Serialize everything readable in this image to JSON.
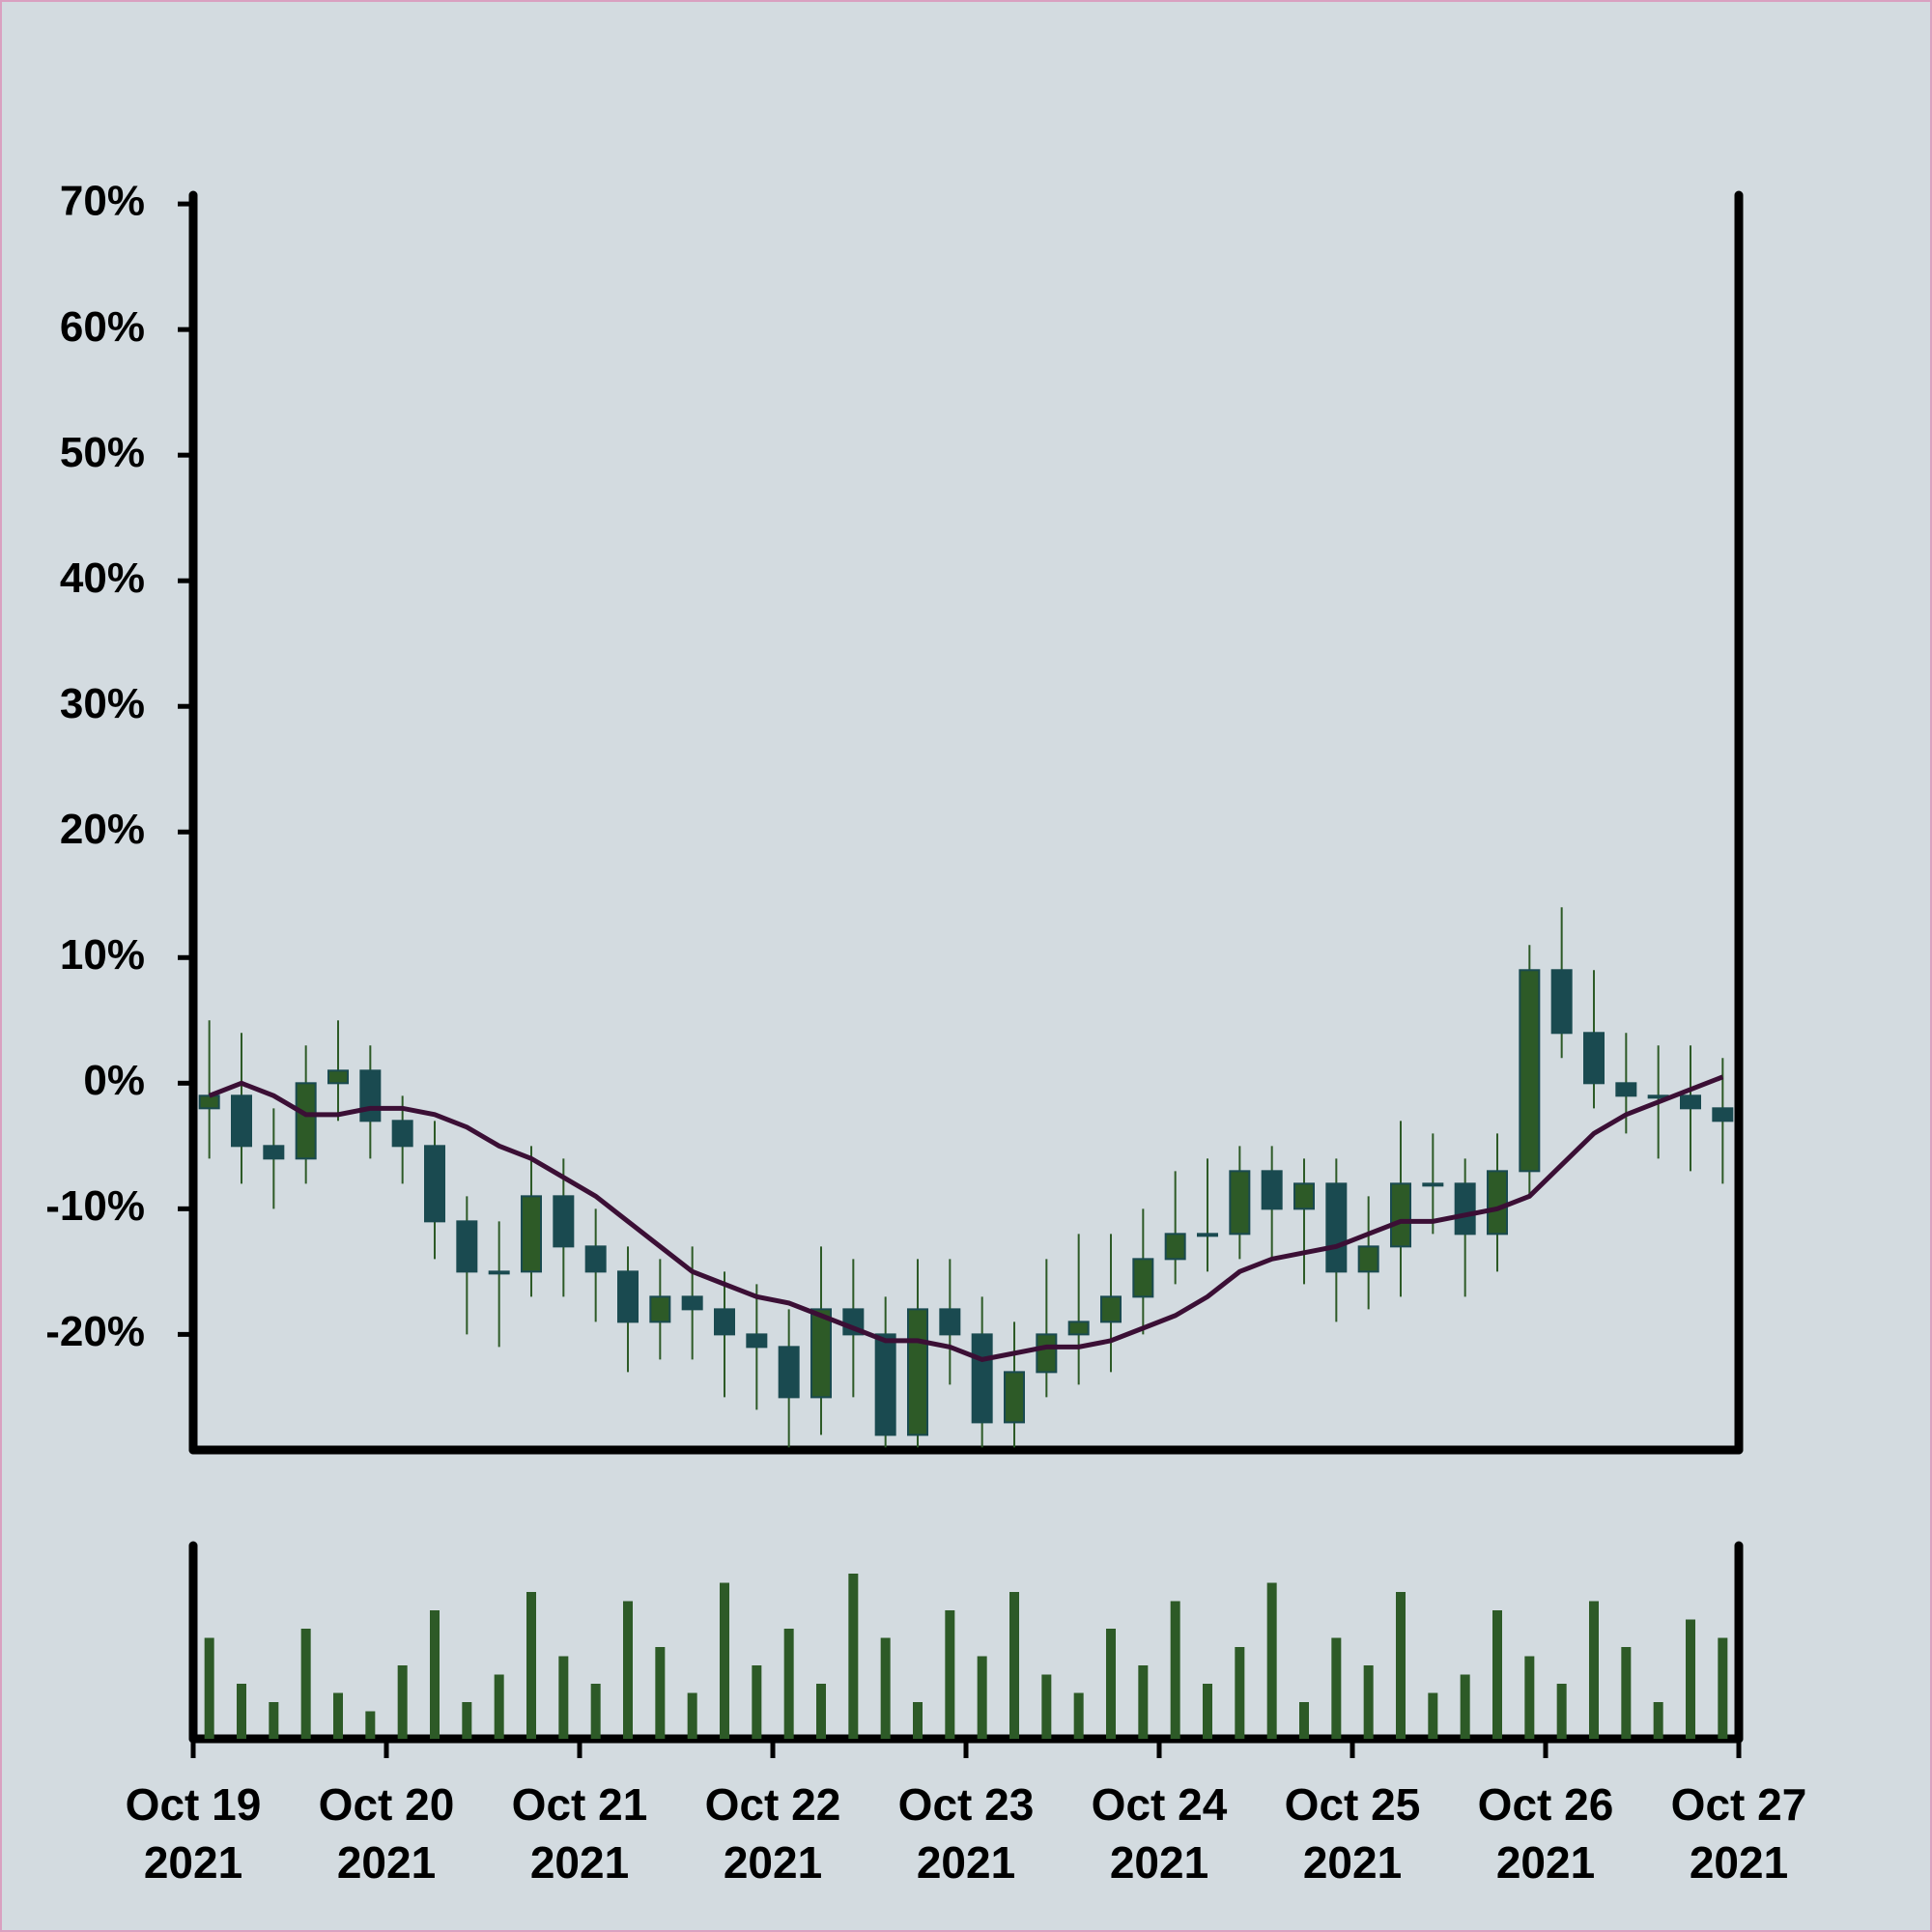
{
  "chart_data": {
    "type": "candlestick",
    "open": [
      -2,
      -1,
      -5,
      -6,
      0,
      1,
      -3,
      -5,
      -11,
      -15,
      -15,
      -9,
      -13,
      -15,
      -19,
      -17,
      -18,
      -20,
      -21,
      -25,
      -18,
      -20,
      -28,
      -18,
      -20,
      -27,
      -23,
      -20,
      -19,
      -17,
      -14,
      -12,
      -12,
      -7,
      -10,
      -8,
      -15,
      -13,
      -8,
      -8,
      -12,
      -7,
      9,
      4,
      0,
      -1,
      -1,
      -2
    ],
    "high": [
      5,
      4,
      -2,
      3,
      5,
      3,
      -1,
      -3,
      -9,
      -11,
      -5,
      -6,
      -10,
      -13,
      -14,
      -13,
      -15,
      -16,
      -18,
      -13,
      -14,
      -17,
      -14,
      -14,
      -17,
      -19,
      -14,
      -12,
      -12,
      -10,
      -7,
      -6,
      -5,
      -5,
      -6,
      -6,
      -9,
      -3,
      -4,
      -6,
      -4,
      11,
      14,
      9,
      4,
      3,
      3,
      2
    ],
    "low": [
      -6,
      -8,
      -10,
      -8,
      -3,
      -6,
      -8,
      -14,
      -20,
      -21,
      -17,
      -17,
      -19,
      -23,
      -22,
      -22,
      -25,
      -26,
      -29,
      -28,
      -25,
      -29,
      -29,
      -24,
      -29,
      -29,
      -25,
      -24,
      -23,
      -20,
      -16,
      -15,
      -14,
      -14,
      -16,
      -19,
      -18,
      -17,
      -12,
      -17,
      -15,
      -9,
      2,
      -2,
      -4,
      -6,
      -7,
      -8
    ],
    "close": [
      -1,
      -5,
      -6,
      0,
      1,
      -3,
      -5,
      -11,
      -15,
      -15,
      -9,
      -13,
      -15,
      -19,
      -17,
      -18,
      -20,
      -21,
      -25,
      -18,
      -20,
      -28,
      -18,
      -20,
      -27,
      -23,
      -20,
      -19,
      -17,
      -14,
      -12,
      -12,
      -7,
      -10,
      -8,
      -15,
      -13,
      -8,
      -8,
      -12,
      -7,
      9,
      4,
      0,
      -1,
      -1,
      -2,
      -3
    ],
    "up_color": "#2d5a27",
    "down_color": "#1a4a50",
    "ma": {
      "color": "#3b0f35",
      "values": [
        -1,
        0,
        -1,
        -2.5,
        -2.5,
        -2,
        -2,
        -2.5,
        -3.5,
        -5,
        -6,
        -7.5,
        -9,
        -11,
        -13,
        -15,
        -16,
        -17,
        -17.5,
        -18.5,
        -19.5,
        -20.5,
        -20.5,
        -21,
        -22,
        -21.5,
        -21,
        -21,
        -20.5,
        -19.5,
        -18.5,
        -17,
        -15,
        -14,
        -13.5,
        -13,
        -12,
        -11,
        -11,
        -10.5,
        -10,
        -9,
        -6.5,
        -4,
        -2.5,
        -1.5,
        -0.5,
        0.5
      ]
    },
    "volume": {
      "color": "#2d5a27",
      "ylim": [
        0,
        100
      ],
      "values": [
        55,
        30,
        20,
        60,
        25,
        15,
        40,
        70,
        20,
        35,
        80,
        45,
        30,
        75,
        50,
        25,
        85,
        40,
        60,
        30,
        90,
        55,
        20,
        70,
        45,
        80,
        35,
        25,
        60,
        40,
        75,
        30,
        50,
        85,
        20,
        55,
        40,
        80,
        25,
        35,
        70,
        45,
        30,
        75,
        50,
        20,
        65,
        55
      ]
    },
    "xlim": [
      0,
      48
    ],
    "xticks": [
      {
        "value": 0,
        "label": "Oct 19 2021"
      },
      {
        "value": 6,
        "label": "Oct 20 2021"
      },
      {
        "value": 12,
        "label": "Oct 21 2021"
      },
      {
        "value": 18,
        "label": "Oct 22 2021"
      },
      {
        "value": 24,
        "label": "Oct 23 2021"
      },
      {
        "value": 30,
        "label": "Oct 24 2021"
      },
      {
        "value": 36,
        "label": "Oct 25 2021"
      },
      {
        "value": 42,
        "label": "Oct 26 2021"
      },
      {
        "value": 48,
        "label": "Oct 27 2021"
      }
    ],
    "ylim": [
      -29.2,
      70.7
    ],
    "yticks": [
      {
        "value": -20,
        "label": "-20%"
      },
      {
        "value": -10,
        "label": "-10%"
      },
      {
        "value": 0,
        "label": "0%"
      },
      {
        "value": 10,
        "label": "10%"
      },
      {
        "value": 20,
        "label": "20%"
      },
      {
        "value": 30,
        "label": "30%"
      },
      {
        "value": 40,
        "label": "40%"
      },
      {
        "value": 50,
        "label": "50%"
      },
      {
        "value": 60,
        "label": "60%"
      },
      {
        "value": 70,
        "label": "70%"
      }
    ]
  }
}
